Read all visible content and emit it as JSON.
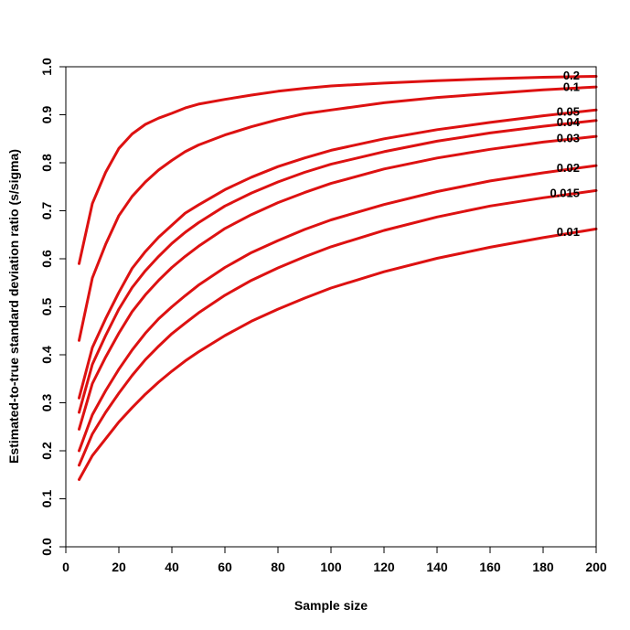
{
  "chart_data": {
    "type": "line",
    "title": "",
    "xlabel": "Sample size",
    "ylabel": "Estimated-to-true standard deviation ratio (s/sigma)",
    "xlim": [
      0,
      200
    ],
    "ylim": [
      0,
      1
    ],
    "xticks": [
      0,
      20,
      40,
      60,
      80,
      100,
      120,
      140,
      160,
      180,
      200
    ],
    "yticks": [
      0.0,
      0.1,
      0.2,
      0.3,
      0.4,
      0.5,
      0.6,
      0.7,
      0.8,
      0.9,
      1.0
    ],
    "xtick_labels": [
      "0",
      "20",
      "40",
      "60",
      "80",
      "100",
      "120",
      "140",
      "160",
      "180",
      "200"
    ],
    "ytick_labels": [
      "0.0",
      "0.1",
      "0.2",
      "0.3",
      "0.4",
      "0.5",
      "0.6",
      "0.7",
      "0.8",
      "0.9",
      "1.0"
    ],
    "grid": false,
    "line_color": "#dd1111",
    "x": [
      5,
      10,
      15,
      20,
      25,
      30,
      35,
      40,
      45,
      50,
      60,
      70,
      80,
      90,
      100,
      120,
      140,
      160,
      180,
      200
    ],
    "series": [
      {
        "name": "0.2",
        "values": [
          0.59,
          0.715,
          0.78,
          0.83,
          0.86,
          0.88,
          0.893,
          0.903,
          0.914,
          0.922,
          0.932,
          0.941,
          0.949,
          0.955,
          0.96,
          0.966,
          0.971,
          0.975,
          0.978,
          0.98
        ]
      },
      {
        "name": "0.1",
        "values": [
          0.43,
          0.56,
          0.63,
          0.69,
          0.73,
          0.76,
          0.785,
          0.805,
          0.823,
          0.837,
          0.858,
          0.875,
          0.89,
          0.902,
          0.91,
          0.925,
          0.936,
          0.944,
          0.952,
          0.958
        ]
      },
      {
        "name": "0.05",
        "values": [
          0.31,
          0.415,
          0.475,
          0.53,
          0.58,
          0.615,
          0.645,
          0.67,
          0.695,
          0.712,
          0.744,
          0.77,
          0.792,
          0.81,
          0.826,
          0.85,
          0.869,
          0.884,
          0.898,
          0.91
        ]
      },
      {
        "name": "0.04",
        "values": [
          0.28,
          0.38,
          0.44,
          0.495,
          0.54,
          0.575,
          0.605,
          0.632,
          0.655,
          0.675,
          0.71,
          0.737,
          0.76,
          0.78,
          0.797,
          0.823,
          0.845,
          0.862,
          0.876,
          0.888
        ]
      },
      {
        "name": "0.03",
        "values": [
          0.245,
          0.34,
          0.395,
          0.445,
          0.49,
          0.525,
          0.555,
          0.582,
          0.605,
          0.626,
          0.663,
          0.692,
          0.717,
          0.738,
          0.757,
          0.787,
          0.81,
          0.828,
          0.843,
          0.855
        ]
      },
      {
        "name": "0.02",
        "values": [
          0.2,
          0.275,
          0.325,
          0.37,
          0.41,
          0.445,
          0.475,
          0.5,
          0.523,
          0.545,
          0.582,
          0.613,
          0.638,
          0.661,
          0.681,
          0.713,
          0.74,
          0.762,
          0.779,
          0.794
        ]
      },
      {
        "name": "0.015",
        "values": [
          0.17,
          0.235,
          0.28,
          0.32,
          0.357,
          0.39,
          0.418,
          0.444,
          0.466,
          0.487,
          0.524,
          0.555,
          0.581,
          0.604,
          0.625,
          0.659,
          0.687,
          0.71,
          0.727,
          0.742
        ]
      },
      {
        "name": "0.01",
        "values": [
          0.14,
          0.19,
          0.225,
          0.26,
          0.29,
          0.318,
          0.343,
          0.366,
          0.387,
          0.406,
          0.44,
          0.47,
          0.495,
          0.518,
          0.539,
          0.573,
          0.601,
          0.624,
          0.644,
          0.662
        ]
      }
    ]
  }
}
